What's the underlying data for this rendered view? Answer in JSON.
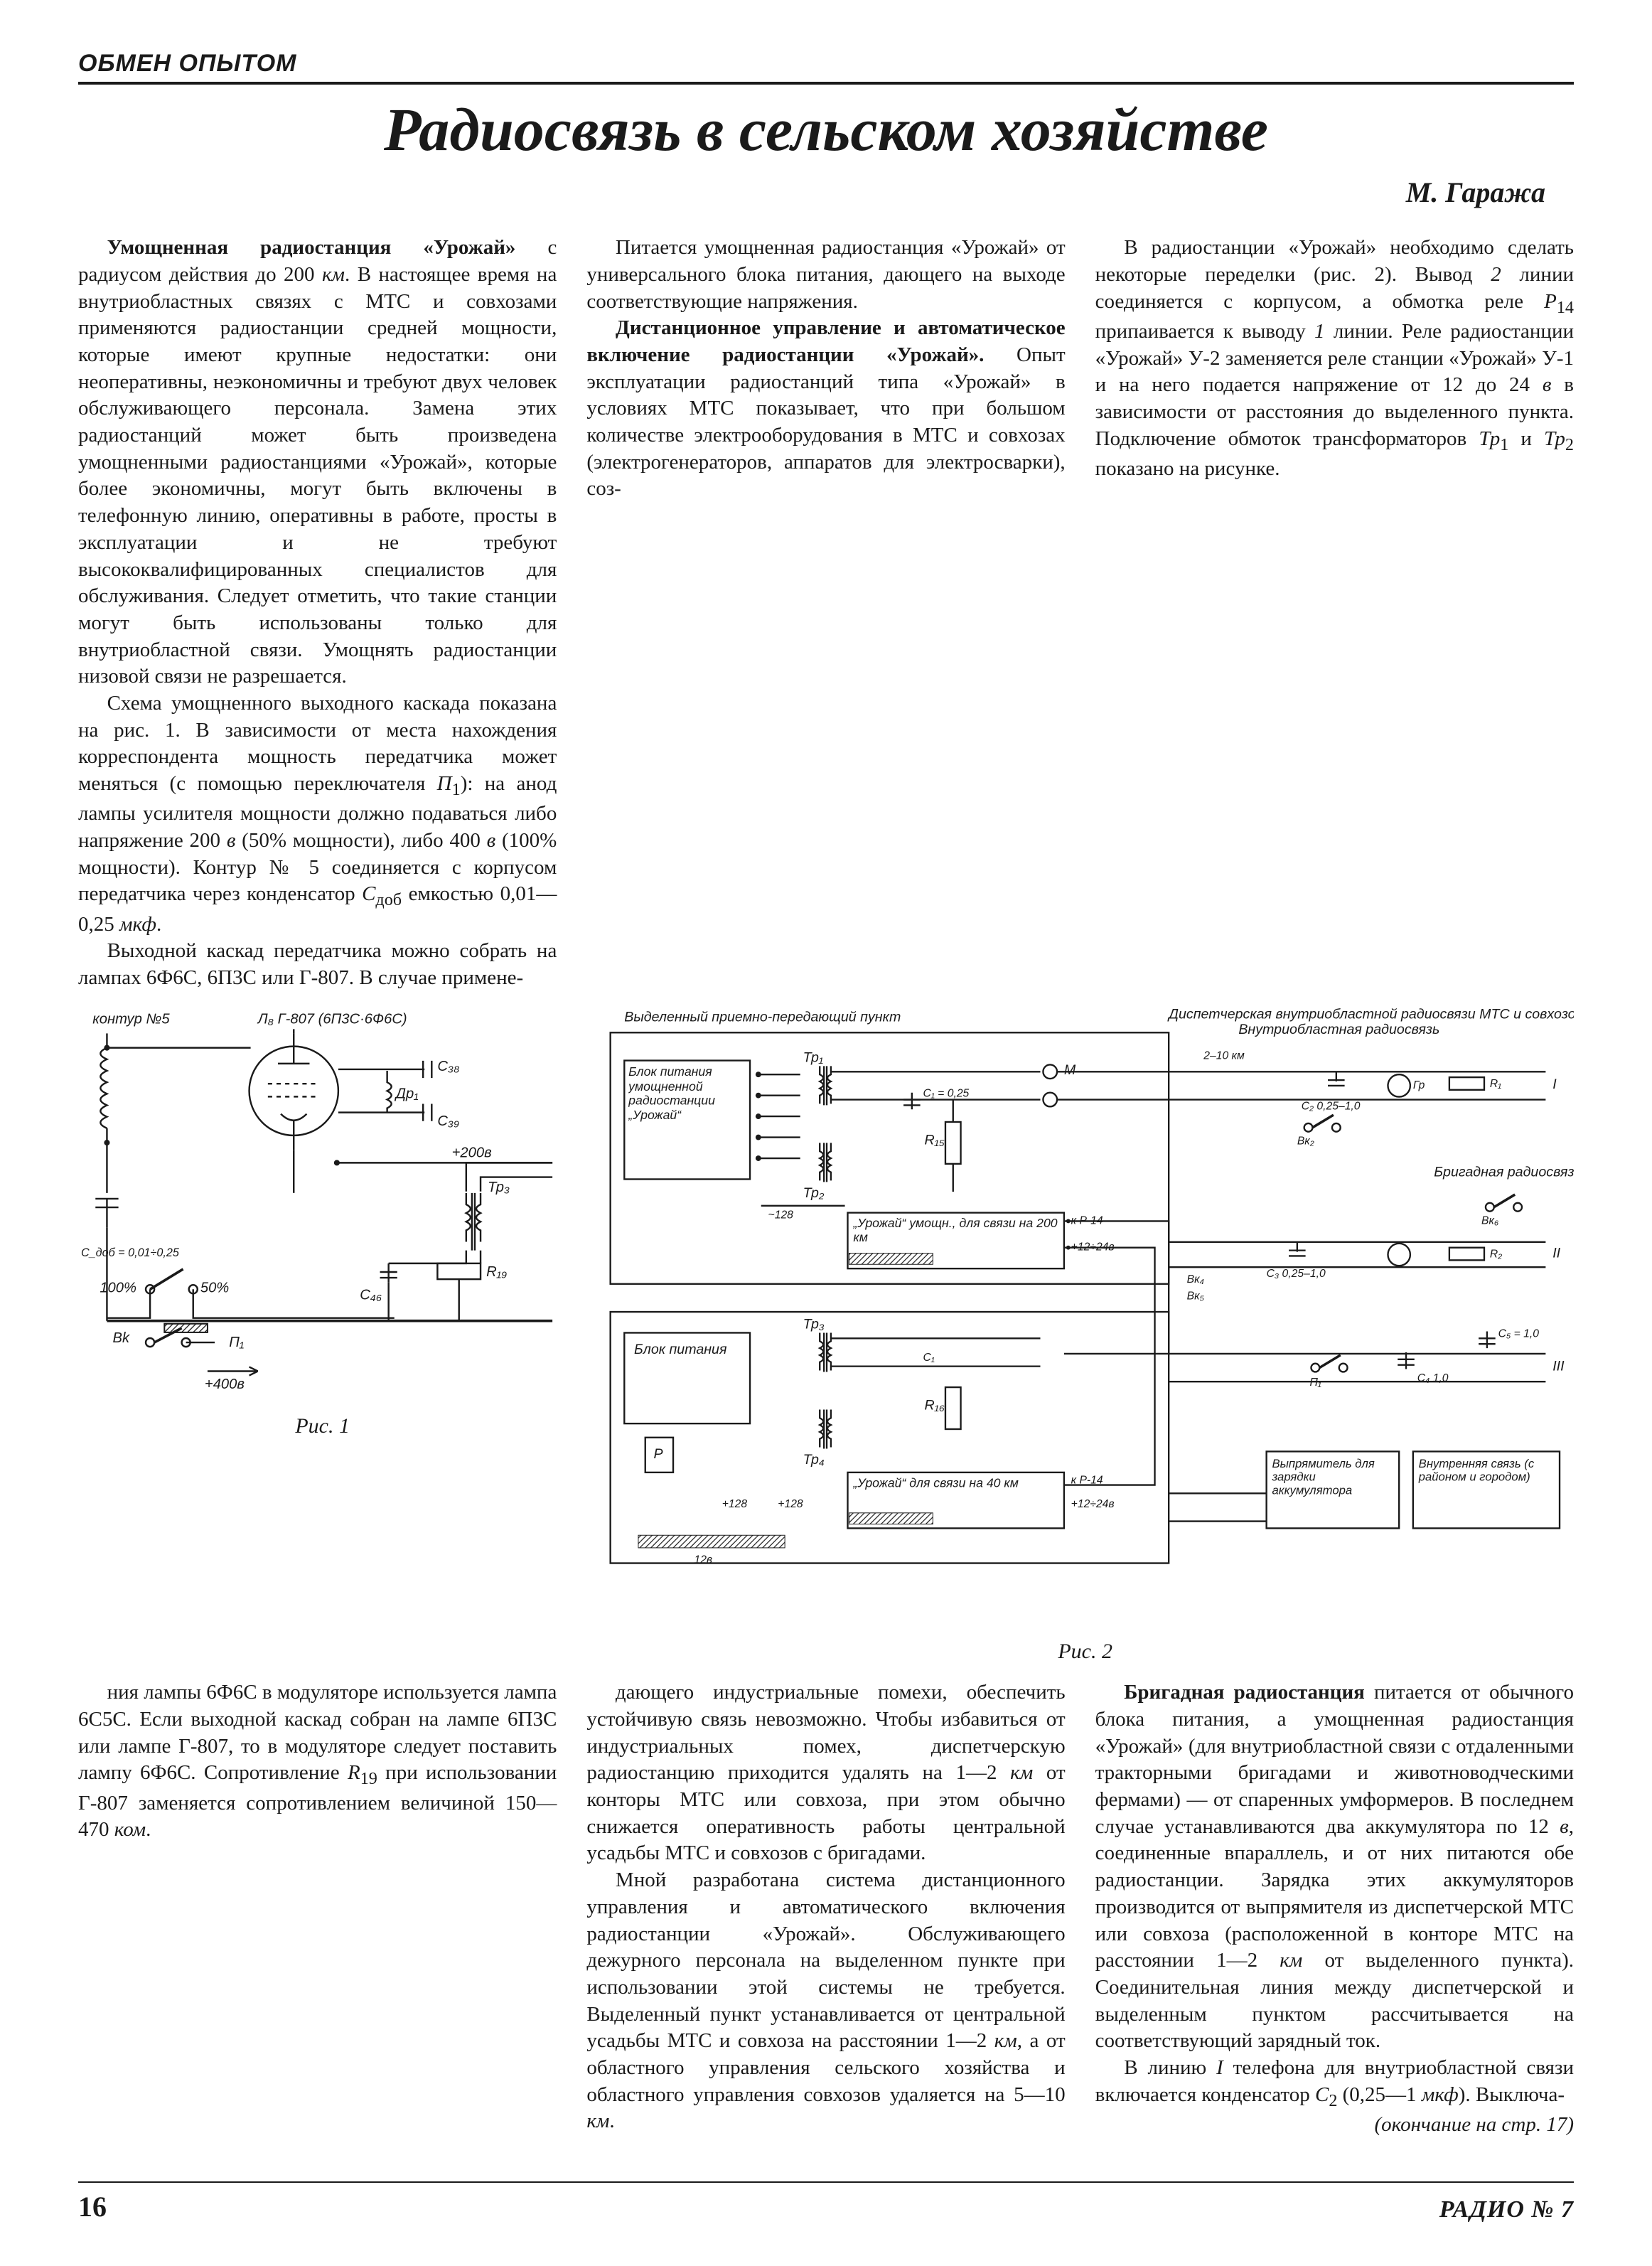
{
  "section_label": "ОБМЕН ОПЫТОМ",
  "title": "Радиосвязь в сельском хозяйстве",
  "byline": "М. Гаража",
  "col1_top": [
    "<span class=\"lead\">Умощненная радиостанция «Урожай»</span> с радиусом действия до 200 <span class=\"ital\">км</span>. В настоящее время на внутриобластных связях с МТС и совхозами применяются радиостанции средней мощности, которые имеют крупные недостатки: они неоперативны, неэкономичны и требуют двух человек обслуживающего персонала. Замена этих радиостанций может быть произведена умощненными радиостанциями «Урожай», которые более экономичны, могут быть включены в телефонную линию, оперативны в работе, просты в эксплуатации и не требуют высококвалифицированных специалистов для обслуживания. Следует отметить, что такие станции могут быть использованы только для внутриобластной связи. Умощнять радиостанции низовой связи не разрешается.",
    "Схема умощненного выходного каскада показана на рис. 1. В зависимости от места нахождения корреспондента мощность передатчика может меняться (с помощью переключателя <span class=\"ital\">П</span><sub>1</sub>): на анод лампы усилителя мощности должно подаваться либо напряжение 200 <span class=\"ital\">в</span> (50% мощности), либо 400 <span class=\"ital\">в</span> (100% мощности). Контур № 5 соединяется с корпусом передатчика через конденсатор <span class=\"ital\">С</span><sub>доб</sub> емкостью 0,01—0,25 <span class=\"ital\">мкф</span>.",
    "Выходной каскад передатчика можно собрать на лампах 6Ф6С, 6П3С или Г-807. В случае примене-"
  ],
  "col2_top": [
    "Питается умощненная радиостанция «Урожай» от универсального блока питания, дающего на выходе соответствующие напряжения.",
    "<span class=\"lead\">Дистанционное управление и автоматическое включение радиостанции «Урожай».</span> Опыт эксплуатации радиостанций типа «Урожай» в условиях МТС показывает, что при большом количестве электрооборудования в МТС и совхозах (электрогенераторов, аппаратов для электросварки), соз-"
  ],
  "col3_top": [
    "В радиостанции «Урожай» необходимо сделать некоторые переделки (рис. 2). Вывод <span class=\"ital\">2</span> линии соединяется с корпусом, а обмотка реле <span class=\"ital\">Р</span><sub>14</sub> припаивается к выводу <span class=\"ital\">1</span> линии. Реле радиостанции «Урожай» У-2 заменяется реле станции «Урожай» У-1 и на него подается напряжение от 12 до 24 <span class=\"ital\">в</span> в зависимости от расстояния до выделенного пункта. Подключение обмоток трансформаторов <span class=\"ital\">Тр</span><sub>1</sub> и <span class=\"ital\">Тр</span><sub>2</sub> показано на рисунке."
  ],
  "col1_bot": [
    "ния лампы 6Ф6С в модуляторе используется лампа 6С5С. Если выходной каскад собран на лампе 6П3С или лампе Г-807, то в модуляторе следует поставить лампу 6Ф6С. Сопротивление <span class=\"ital\">R</span><sub>19</sub> при использовании Г-807 заменяется сопротивлением величиной 150—470 <span class=\"ital\">ком</span>."
  ],
  "col2_bot": [
    "дающего индустриальные помехи, обеспечить устойчивую связь невозможно. Чтобы избавиться от индустриальных помех, диспетчерскую радиостанцию приходится удалять на 1—2 <span class=\"ital\">км</span> от конторы МТС или совхоза, при этом обычно снижается оперативность работы центральной усадьбы МТС и совхозов с бригадами.",
    "Мной разработана система дистанционного управления и автоматического включения радиостанции «Урожай». Обслуживающего дежурного персонала на выделенном пункте при использовании этой системы не требуется. Выделенный пункт устанавливается от центральной усадьбы МТС и совхоза на расстоянии 1—2 <span class=\"ital\">км</span>, а от областного управления сельского хозяйства и областного управления совхозов удаляется на 5—10 <span class=\"ital\">км</span>."
  ],
  "col3_bot": [
    "<span class=\"lead\">Бригадная радиостанция</span> питается от обычного блока питания, а умощненная радиостанция «Урожай» (для внутриобластной связи с отдаленными тракторными бригадами и животноводческими фермами) — от спаренных умформеров. В последнем случае устанавливаются два аккумулятора по 12 <span class=\"ital\">в</span>, соединенные впараллель, и от них питаются обе радиостанции. Зарядка этих аккумуляторов производится от выпрямителя из диспетчерской МТС или совхоза (расположенной в конторе МТС на расстоянии 1—2 <span class=\"ital\">км</span> от выделенного пункта). Соединительная линия между диспетчерской и выделенным пунктом рассчитывается на соответствующий зарядный ток.",
    "В линию <span class=\"ital\">I</span> телефона для внутриобластной связи включается конденсатор <span class=\"ital\">С</span><sub>2</sub> (0,25—1 <span class=\"ital\">мкф</span>). Выключа-",
    "<span class=\"ital\" style=\"display:block;text-align:right\">(окончание на стр. 17)</span>"
  ],
  "fig1": {
    "caption": "Рис. 1",
    "labels": {
      "kontur": "контур №5",
      "tube": "Л₈ Г-807 (6П3С·6Ф6С)",
      "c38": "C₃₈",
      "c39": "C₃₉",
      "dr1": "Др₁",
      "cdob": "C_доб = 0,01÷0,25",
      "p200": "+200в",
      "p400": "+400в",
      "pct100": "100%",
      "pct50": "50%",
      "bk": "Bk",
      "p1": "П₁",
      "c46": "C₄₆",
      "r19": "R₁₉",
      "tr3": "Тр₃"
    }
  },
  "fig2": {
    "caption": "Рис. 2",
    "top_left_title": "Выделенный приемно-передающий пункт",
    "top_right_title1": "Диспетчерская внутриобластной радиосвязи МТС и совхозов",
    "top_right_title2": "Внутриобластная радиосвязь",
    "labels": {
      "psu1": "Блок питания умощненной радиостанции „Урожай“",
      "psu2": "Блок питания",
      "um": "„Урожай“ умощн., для связи на 200 км",
      "ur40": "„Урожай“ для связи на 40 км",
      "tr1": "Тр₁",
      "tr2": "Тр₂",
      "tr3": "Тр₃",
      "tr4": "Тр₄",
      "c1": "C₁ = 0,25",
      "r15": "R₁₅",
      "r16": "R₁₆",
      "p14": "к Р-14",
      "v128": "~128",
      "v12_24": "+12÷24в",
      "vp12_24": "+12÷24в",
      "p": "Р",
      "p128a": "+128",
      "p128b": "+128",
      "m": "М",
      "2_10km": "2–10 км",
      "bk2": "Вк₂",
      "bk3": "Вк₃",
      "bk4": "Вк₄",
      "bk5": "Вк₅",
      "bk6": "Вк₆",
      "gr": "Гр",
      "c2": "C₂ 0,25–1,0",
      "r1": "R₁",
      "c3": "C₃ 0,25–1,0",
      "r2": "R₂",
      "p1": "П₁",
      "c4": "C₄ 1,0",
      "c5": "C₅ = 1,0",
      "brig": "Бригадная радиосвязь",
      "rect": "Выпрямитель для зарядки аккумулятора",
      "intcom": "Внутренняя связь (с районом и городом)",
      "l1": "I",
      "l2": "II",
      "l3": "III"
    }
  },
  "page_number": "16",
  "journal_id": "РАДИО № 7"
}
